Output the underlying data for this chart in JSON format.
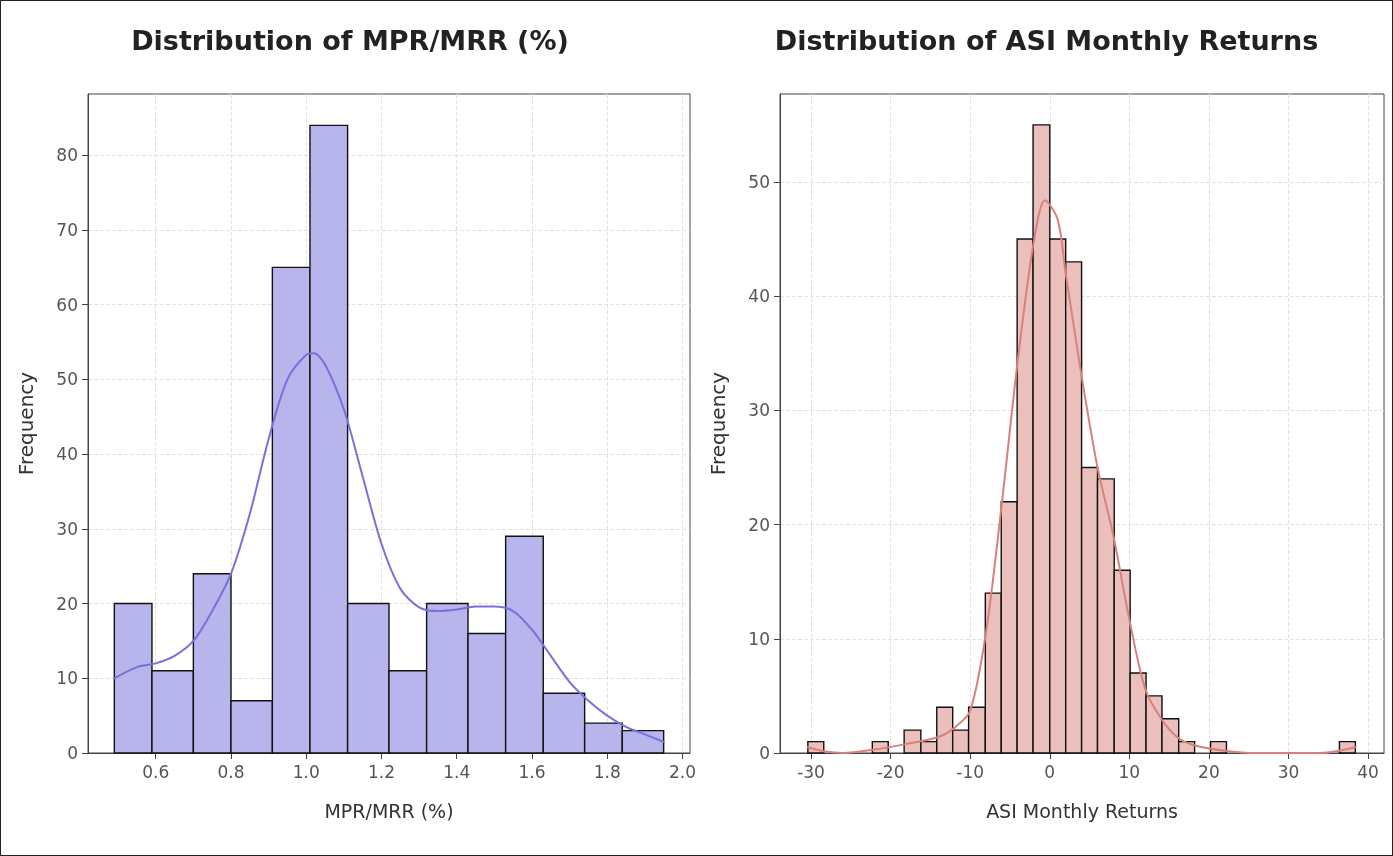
{
  "chart_data": [
    {
      "type": "histogram",
      "title": "Distribution of MPR/MRR (%)",
      "xlabel": "MPR/MRR (%)",
      "ylabel": "Frequency",
      "grid": true,
      "xlim": [
        0.42,
        2.02
      ],
      "xticks": [
        0.6,
        0.8,
        {
          "value": 1,
          "label": "1.0"
        },
        1.2,
        1.4,
        1.6,
        1.8,
        {
          "value": 2,
          "label": "2.0"
        }
      ],
      "ylim": [
        0,
        88.2
      ],
      "yticks": [
        0,
        10,
        20,
        30,
        40,
        50,
        60,
        70,
        80
      ],
      "bins": [
        0.49,
        0.59,
        0.7,
        0.8,
        0.91,
        1.01,
        1.11,
        1.22,
        1.32,
        1.43,
        1.53,
        1.63,
        1.74,
        1.84,
        1.95
      ],
      "series": [
        {
          "type": "histogram",
          "color": "#b8b4ec",
          "values": [
            20,
            11,
            24,
            7,
            65,
            84,
            20,
            11,
            20,
            16,
            29,
            8,
            4,
            3
          ]
        },
        {
          "type": "line",
          "color": "#7b6fdc",
          "x": [
            0.49,
            0.55,
            0.6,
            0.65,
            0.7,
            0.75,
            0.8,
            0.85,
            0.9,
            0.95,
            1.0,
            1.02,
            1.05,
            1.1,
            1.15,
            1.2,
            1.25,
            1.3,
            1.35,
            1.4,
            1.45,
            1.5,
            1.55,
            1.6,
            1.65,
            1.7,
            1.75,
            1.8,
            1.85,
            1.9,
            1.95
          ],
          "values": [
            10,
            11.5,
            12,
            13,
            15,
            19,
            24,
            32,
            42,
            50,
            53.3,
            53.5,
            52,
            46,
            37,
            28,
            22,
            19.5,
            19,
            19.2,
            19.6,
            19.6,
            19,
            16.5,
            13,
            9.5,
            7,
            5,
            3.5,
            2.5,
            1.5
          ]
        }
      ]
    },
    {
      "type": "histogram",
      "title": "Distribution of ASI Monthly Returns",
      "xlabel": "ASI Monthly Returns",
      "ylabel": "Frequency",
      "grid": true,
      "xlim": [
        -33.9,
        42.0
      ],
      "xticks": [
        -30,
        -20,
        -10,
        0,
        10,
        20,
        30,
        40
      ],
      "ylim": [
        0,
        57.7
      ],
      "yticks": [
        0,
        10,
        20,
        30,
        40,
        50
      ],
      "bins": [
        -30.4,
        -28.4,
        -22.3,
        -20.3,
        -18.3,
        -16.2,
        -14.2,
        -12.2,
        -10.2,
        -8.1,
        -6.1,
        -4.1,
        -2.1,
        0.0,
        2.0,
        4.0,
        6.0,
        8.1,
        10.1,
        12.1,
        14.1,
        16.2,
        18.2,
        20.2,
        22.2,
        36.4,
        38.4
      ],
      "series": [
        {
          "type": "histogram",
          "color": "#ebc0bc",
          "values": [
            1,
            0,
            1,
            0,
            2,
            1,
            4,
            2,
            4,
            14,
            22,
            45,
            55,
            45,
            43,
            25,
            24,
            16,
            7,
            5,
            3,
            1,
            0,
            1,
            0,
            1
          ]
        },
        {
          "type": "line",
          "color": "#d9807a",
          "x": [
            -30.4,
            -28,
            -26,
            -22,
            -18,
            -14,
            -12,
            -10,
            -8,
            -6,
            -4,
            -2,
            -0.6,
            1,
            2,
            4,
            6,
            8,
            10,
            12,
            14,
            16,
            18,
            22,
            26,
            30,
            34,
            38.4
          ],
          "values": [
            0.5,
            0.1,
            0,
            0.3,
            0.8,
            1.4,
            2.2,
            3.7,
            10.6,
            22,
            34.5,
            44.8,
            48.4,
            46.7,
            42,
            33,
            25,
            19,
            11.7,
            5.6,
            3,
            1.4,
            0.7,
            0.2,
            0,
            0,
            0,
            0.5
          ]
        }
      ]
    }
  ]
}
